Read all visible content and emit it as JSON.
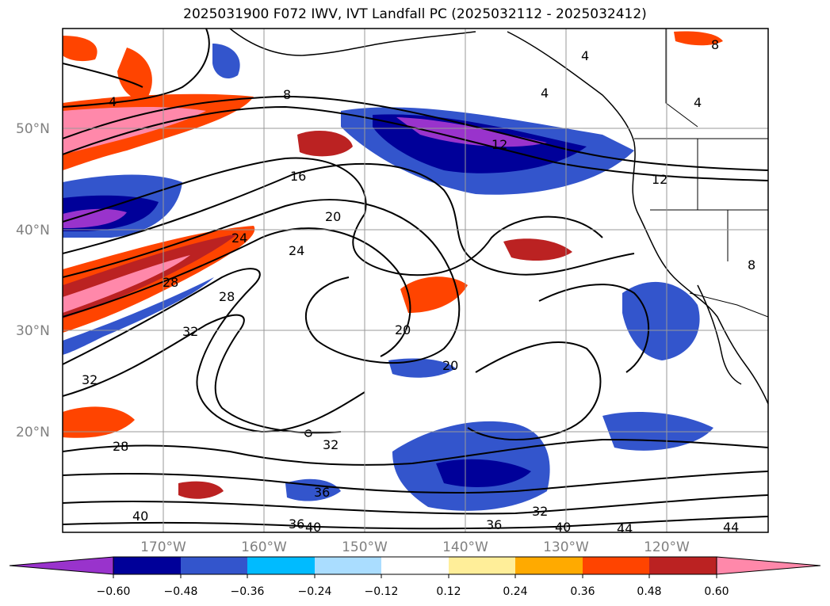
{
  "title": "2025031900 F072 IWV, IVT Landfall PC (2025032112 - 2025032412)",
  "lat_labels": [
    "50°N",
    "40°N",
    "30°N",
    "20°N"
  ],
  "lon_labels": [
    "170°W",
    "160°W",
    "150°W",
    "140°W",
    "130°W",
    "120°W"
  ],
  "colorbar": {
    "colors": [
      "#9933cc",
      "#000099",
      "#3355cc",
      "#00bbff",
      "#aaddff",
      "#ffffff",
      "#ffee99",
      "#ffaa00",
      "#ff4400",
      "#bb2222",
      "#ff88aa"
    ],
    "ticks": [
      "−0.60",
      "−0.48",
      "−0.36",
      "−0.24",
      "−0.12",
      "0.12",
      "0.24",
      "0.36",
      "0.48",
      "0.60"
    ]
  },
  "contour_labels": [
    "4",
    "8",
    "12",
    "16",
    "20",
    "24",
    "28",
    "32",
    "36",
    "40",
    "44"
  ],
  "contour_label_marks": [
    {
      "text": "4"
    },
    {
      "text": "4"
    },
    {
      "text": "4"
    },
    {
      "text": "8"
    },
    {
      "text": "4"
    },
    {
      "text": "8"
    },
    {
      "text": "12"
    },
    {
      "text": "12"
    },
    {
      "text": "16"
    },
    {
      "text": "20"
    },
    {
      "text": "24"
    },
    {
      "text": "24"
    },
    {
      "text": "28"
    },
    {
      "text": "28"
    },
    {
      "text": "32"
    },
    {
      "text": "32"
    },
    {
      "text": "20"
    },
    {
      "text": "20"
    },
    {
      "text": "32"
    },
    {
      "text": "28"
    },
    {
      "text": "36"
    },
    {
      "text": "36"
    },
    {
      "text": "40"
    },
    {
      "text": "40"
    },
    {
      "text": "32"
    },
    {
      "text": "36"
    },
    {
      "text": "40"
    },
    {
      "text": "44"
    },
    {
      "text": "44"
    },
    {
      "text": "8"
    }
  ]
}
